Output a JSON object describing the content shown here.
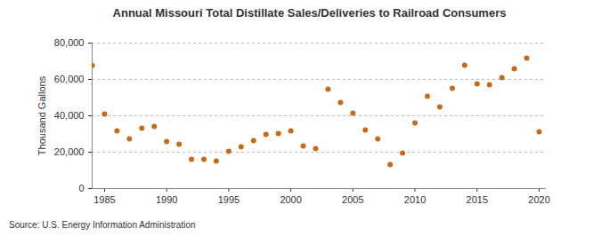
{
  "chart_data": {
    "type": "scatter",
    "title": "Annual Missouri Total Distillate Sales/Deliveries to Railroad Consumers",
    "source": "Source: U.S. Energy Information Administration",
    "y_label": "Thousand Gallons",
    "x": [
      1984,
      1985,
      1986,
      1987,
      1988,
      1989,
      1990,
      1991,
      1992,
      1993,
      1994,
      1995,
      1996,
      1997,
      1998,
      1999,
      2000,
      2001,
      2002,
      2003,
      2004,
      2005,
      2006,
      2007,
      2008,
      2009,
      2010,
      2011,
      2012,
      2013,
      2014,
      2015,
      2016,
      2017,
      2018,
      2019,
      2020
    ],
    "values": [
      67700,
      41000,
      31700,
      27300,
      33200,
      34100,
      25900,
      24400,
      16100,
      16100,
      15100,
      20500,
      22900,
      26300,
      29800,
      30200,
      31700,
      23400,
      22000,
      54600,
      47300,
      41500,
      32200,
      27300,
      13200,
      19500,
      36100,
      50700,
      44900,
      55100,
      67800,
      57600,
      57100,
      61000,
      65900,
      71700,
      31200
    ],
    "color": "#c46a1a",
    "marker": "circle",
    "xlim": [
      1984,
      2020.5
    ],
    "xticks": [
      1985,
      1990,
      1995,
      2000,
      2005,
      2010,
      2015,
      2020
    ],
    "ylim": [
      0,
      80000
    ],
    "yticks": [
      0,
      {
        "value": 20000,
        "label": "20,000"
      },
      {
        "value": 40000,
        "label": "40,000"
      },
      {
        "value": 60000,
        "label": "60,000"
      },
      {
        "value": 80000,
        "label": "80,000"
      }
    ],
    "grid": "y"
  }
}
